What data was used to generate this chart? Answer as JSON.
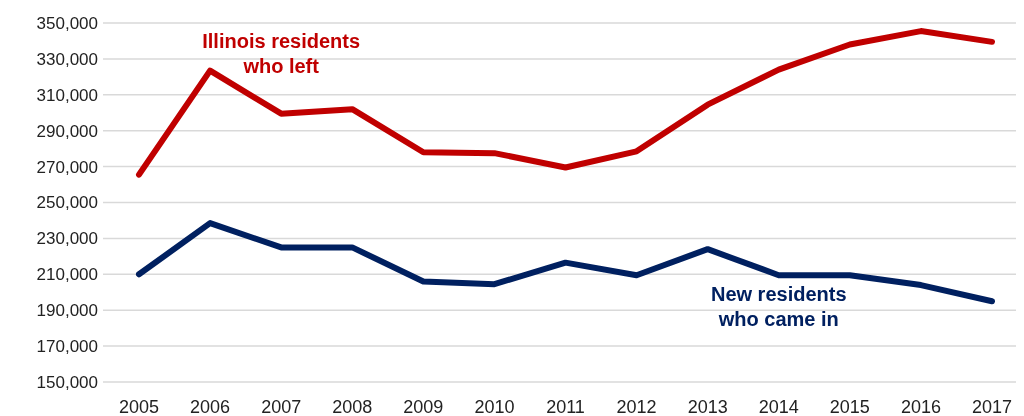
{
  "chart_data": {
    "type": "line",
    "categories": [
      "2005",
      "2006",
      "2007",
      "2008",
      "2009",
      "2010",
      "2011",
      "2012",
      "2013",
      "2014",
      "2015",
      "2016",
      "2017"
    ],
    "series": [
      {
        "name": "Illinois residents who left",
        "color": "#c00000",
        "values": [
          265500,
          323500,
          299500,
          302000,
          278000,
          277500,
          269500,
          278500,
          304500,
          324000,
          338000,
          345500,
          339500
        ]
      },
      {
        "name": "New residents who came in",
        "color": "#002060",
        "values": [
          210000,
          238500,
          225000,
          225000,
          206000,
          204500,
          216500,
          209500,
          224000,
          209500,
          209500,
          204000,
          195000
        ]
      }
    ],
    "ylim": [
      150000,
      350000
    ],
    "yticks": [
      {
        "value": 150000,
        "label": "150,000"
      },
      {
        "value": 170000,
        "label": "170,000"
      },
      {
        "value": 190000,
        "label": "190,000"
      },
      {
        "value": 210000,
        "label": "210,000"
      },
      {
        "value": 230000,
        "label": "230,000"
      },
      {
        "value": 250000,
        "label": "250,000"
      },
      {
        "value": 270000,
        "label": "270,000"
      },
      {
        "value": 290000,
        "label": "290,000"
      },
      {
        "value": 310000,
        "label": "310,000"
      },
      {
        "value": 330000,
        "label": "330,000"
      },
      {
        "value": 350000,
        "label": "350,000"
      }
    ],
    "grid": "y",
    "marker": "none",
    "line_style": "solid"
  }
}
